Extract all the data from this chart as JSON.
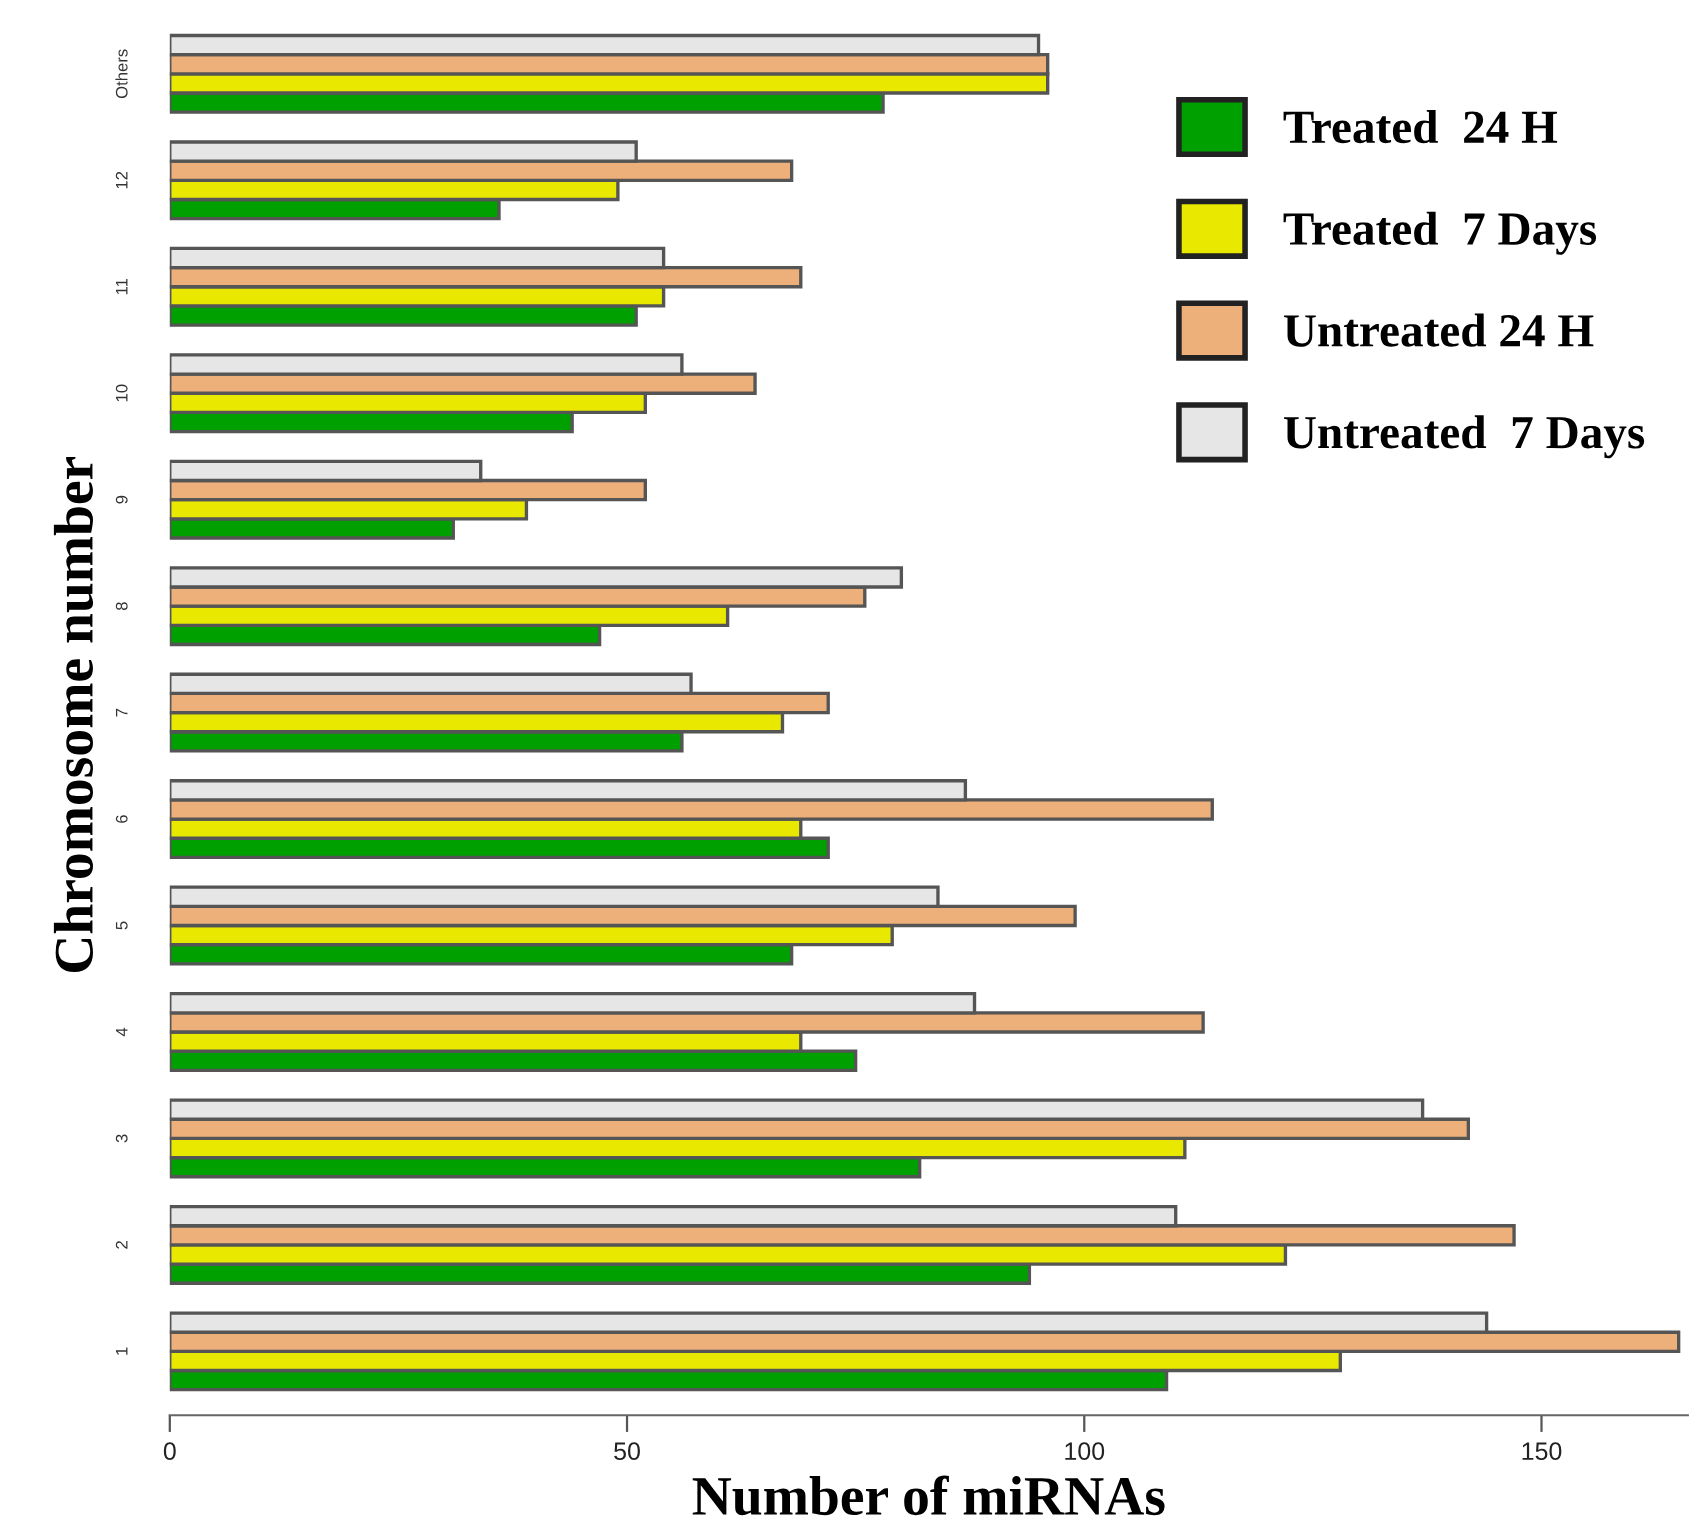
{
  "chart_data": {
    "type": "bar",
    "orientation": "horizontal",
    "xlabel": "Number of miRNAs",
    "ylabel": "Chromosome number",
    "categories": [
      "Others",
      "12",
      "11",
      "10",
      "9",
      "8",
      "7",
      "6",
      "5",
      "4",
      "3",
      "2",
      "1"
    ],
    "series": [
      {
        "name": "Treated  24 H",
        "color": "#00a000",
        "values": [
          78,
          36,
          51,
          44,
          31,
          47,
          56,
          72,
          68,
          75,
          82,
          94,
          109
        ]
      },
      {
        "name": "Treated  7 Days",
        "color": "#e8e800",
        "values": [
          96,
          49,
          54,
          52,
          39,
          61,
          67,
          69,
          79,
          69,
          111,
          122,
          128
        ]
      },
      {
        "name": "Untreated 24 H",
        "color": "#eeb07a",
        "values": [
          96,
          68,
          69,
          64,
          52,
          76,
          72,
          114,
          99,
          113,
          142,
          147,
          165
        ]
      },
      {
        "name": "Untreated  7 Days",
        "color": "#e6e6e6",
        "values": [
          95,
          51,
          54,
          56,
          34,
          80,
          57,
          87,
          84,
          88,
          137,
          110,
          144
        ]
      }
    ],
    "xlim": [
      0,
      166
    ],
    "xticks": [
      0,
      50,
      100,
      150
    ],
    "grid": false,
    "legend": "top right"
  }
}
